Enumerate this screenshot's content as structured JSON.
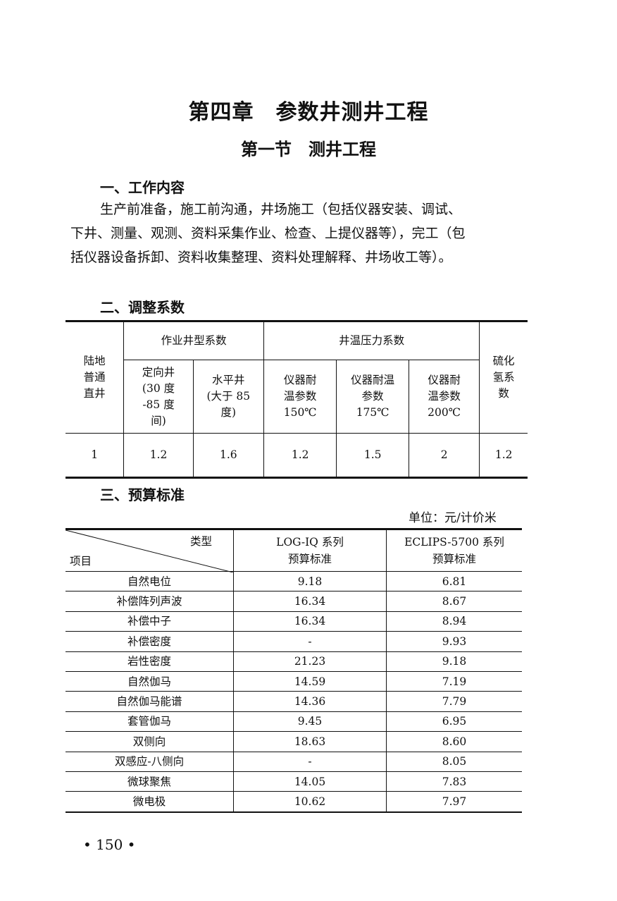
{
  "chapter_title": "第四章　参数井测井工程",
  "section_title": "第一节　测井工程",
  "work": {
    "heading": "一、工作内容",
    "lines": [
      "生产前准备，施工前沟通，井场施工（包括仪器安装、调试、",
      "下井、测量、观测、资料采集作业、检查、上提仪器等），完工（包",
      "括仪器设备拆卸、资料收集整理、资料处理解释、井场收工等）。"
    ]
  },
  "adjust": {
    "heading": "二、调整系数",
    "col0": [
      "陆地",
      "普通",
      "直井"
    ],
    "group1": "作业井型系数",
    "group2": "井温压力系数",
    "last_col": [
      "硫化",
      "氢系",
      "数"
    ],
    "sub": [
      [
        "定向井",
        "(30 度",
        "-85 度",
        "间)"
      ],
      [
        "水平井",
        "(大于 85",
        "度)"
      ],
      [
        "仪器耐",
        "温参数",
        "150℃"
      ],
      [
        "仪器耐温",
        "参数",
        "175℃"
      ],
      [
        "仪器耐",
        "温参数",
        "200℃"
      ]
    ],
    "values": [
      "1",
      "1.2",
      "1.6",
      "1.2",
      "1.5",
      "2",
      "1.2"
    ]
  },
  "budget": {
    "heading": "三、预算标准",
    "unit": "单位：元/计价米",
    "corner_top": "类型",
    "corner_bottom": "项目",
    "col1": [
      "LOG-IQ 系列",
      "预算标准"
    ],
    "col2": [
      "ECLIPS-5700 系列",
      "预算标准"
    ],
    "rows": [
      [
        "自然电位",
        "9.18",
        "6.81"
      ],
      [
        "补偿阵列声波",
        "16.34",
        "8.67"
      ],
      [
        "补偿中子",
        "16.34",
        "8.94"
      ],
      [
        "补偿密度",
        "-",
        "9.93"
      ],
      [
        "岩性密度",
        "21.23",
        "9.18"
      ],
      [
        "自然伽马",
        "14.59",
        "7.19"
      ],
      [
        "自然伽马能谱",
        "14.36",
        "7.79"
      ],
      [
        "套管伽马",
        "9.45",
        "6.95"
      ],
      [
        "双侧向",
        "18.63",
        "8.60"
      ],
      [
        "双感应-八侧向",
        "-",
        "8.05"
      ],
      [
        "微球聚焦",
        "14.05",
        "7.83"
      ],
      [
        "微电极",
        "10.62",
        "7.97"
      ]
    ]
  },
  "page_number": "• 150 •"
}
